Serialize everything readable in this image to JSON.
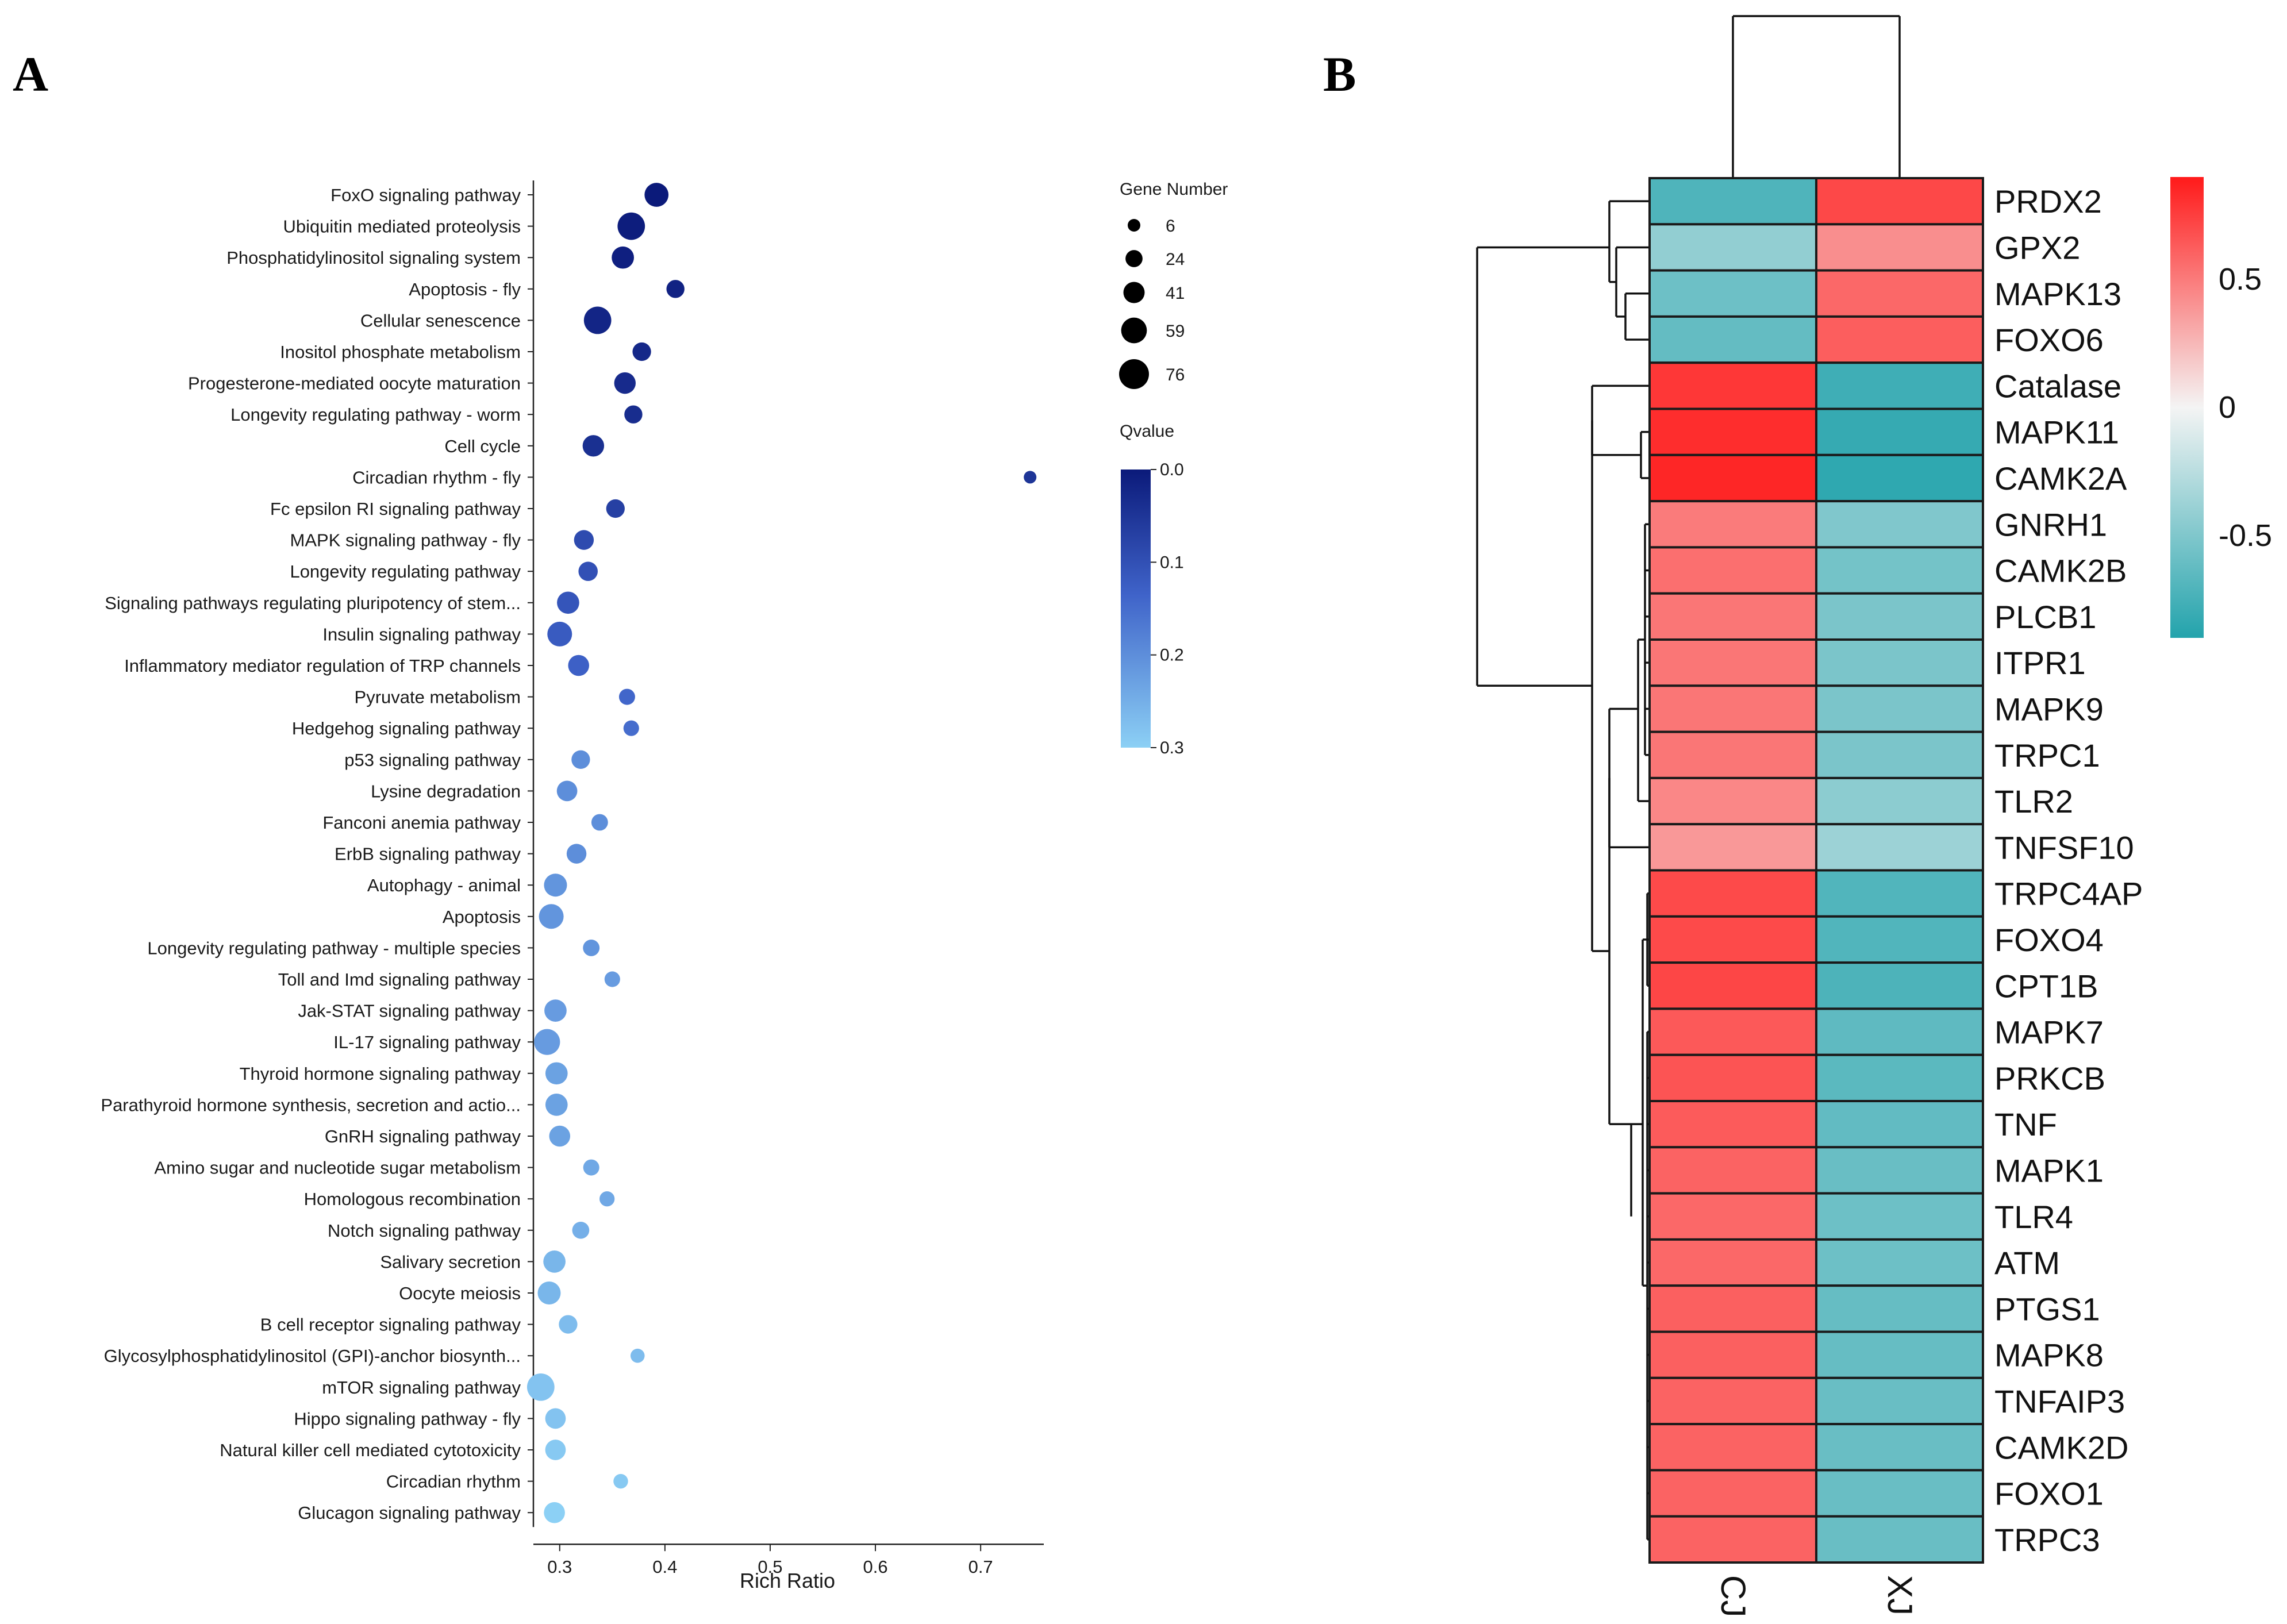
{
  "panels": {
    "a_label": "A",
    "b_label": "B"
  },
  "chart_data": [
    {
      "type": "scatter",
      "panel": "A",
      "title": "",
      "xlabel": "Rich Ratio",
      "ylabel": "",
      "xlim": [
        0.275,
        0.76
      ],
      "xticks": [
        0.3,
        0.4,
        0.5,
        0.6,
        0.7
      ],
      "xtick_labels": [
        "0.3",
        "0.4",
        "0.5",
        "0.6",
        "0.7"
      ],
      "size_legend_title": "Gene Number",
      "size_legend": [
        6,
        24,
        41,
        59,
        76
      ],
      "color_legend_title": "Qvalue",
      "color_legend_ticks": [
        "0.0",
        "0.1",
        "0.2",
        "0.3"
      ],
      "color_range": {
        "low": "#0b1a7a",
        "high": "#8cd0f5",
        "min": 0.0,
        "max": 0.3
      },
      "points": [
        {
          "pathway": "FoxO signaling pathway",
          "rich_ratio": 0.392,
          "genes": 52,
          "qvalue": 0.0
        },
        {
          "pathway": "Ubiquitin mediated proteolysis",
          "rich_ratio": 0.368,
          "genes": 66,
          "qvalue": 0.005
        },
        {
          "pathway": "Phosphatidylinositol signaling system",
          "rich_ratio": 0.36,
          "genes": 45,
          "qvalue": 0.01
        },
        {
          "pathway": "Apoptosis - fly",
          "rich_ratio": 0.41,
          "genes": 28,
          "qvalue": 0.015
        },
        {
          "pathway": "Cellular senescence",
          "rich_ratio": 0.336,
          "genes": 66,
          "qvalue": 0.02
        },
        {
          "pathway": "Inositol phosphate metabolism",
          "rich_ratio": 0.378,
          "genes": 30,
          "qvalue": 0.025
        },
        {
          "pathway": "Progesterone-mediated oocyte maturation",
          "rich_ratio": 0.362,
          "genes": 42,
          "qvalue": 0.03
        },
        {
          "pathway": "Longevity regulating pathway - worm",
          "rich_ratio": 0.37,
          "genes": 28,
          "qvalue": 0.035
        },
        {
          "pathway": "Cell cycle",
          "rich_ratio": 0.332,
          "genes": 42,
          "qvalue": 0.04
        },
        {
          "pathway": "Circadian rhythm - fly",
          "rich_ratio": 0.747,
          "genes": 6,
          "qvalue": 0.05
        },
        {
          "pathway": "Fc epsilon RI signaling pathway",
          "rich_ratio": 0.353,
          "genes": 30,
          "qvalue": 0.07
        },
        {
          "pathway": "MAPK signaling pathway - fly",
          "rich_ratio": 0.323,
          "genes": 35,
          "qvalue": 0.09
        },
        {
          "pathway": "Longevity regulating pathway",
          "rich_ratio": 0.327,
          "genes": 33,
          "qvalue": 0.1
        },
        {
          "pathway": "Signaling pathways regulating pluripotency of stem...",
          "rich_ratio": 0.308,
          "genes": 45,
          "qvalue": 0.11
        },
        {
          "pathway": "Insulin signaling pathway",
          "rich_ratio": 0.3,
          "genes": 55,
          "qvalue": 0.12
        },
        {
          "pathway": "Inflammatory mediator regulation of TRP channels",
          "rich_ratio": 0.318,
          "genes": 40,
          "qvalue": 0.13
        },
        {
          "pathway": "Pyruvate metabolism",
          "rich_ratio": 0.364,
          "genes": 20,
          "qvalue": 0.14
        },
        {
          "pathway": "Hedgehog signaling pathway",
          "rich_ratio": 0.368,
          "genes": 18,
          "qvalue": 0.15
        },
        {
          "pathway": "p53 signaling pathway",
          "rich_ratio": 0.32,
          "genes": 30,
          "qvalue": 0.2
        },
        {
          "pathway": "Lysine degradation",
          "rich_ratio": 0.307,
          "genes": 38,
          "qvalue": 0.2
        },
        {
          "pathway": "Fanconi anemia pathway",
          "rich_ratio": 0.338,
          "genes": 22,
          "qvalue": 0.2
        },
        {
          "pathway": "ErbB signaling pathway",
          "rich_ratio": 0.316,
          "genes": 35,
          "qvalue": 0.2
        },
        {
          "pathway": "Autophagy - animal",
          "rich_ratio": 0.296,
          "genes": 48,
          "qvalue": 0.21
        },
        {
          "pathway": "Apoptosis",
          "rich_ratio": 0.292,
          "genes": 55,
          "qvalue": 0.21
        },
        {
          "pathway": "Longevity regulating pathway - multiple species",
          "rich_ratio": 0.33,
          "genes": 22,
          "qvalue": 0.21
        },
        {
          "pathway": "Toll and Imd signaling pathway",
          "rich_ratio": 0.35,
          "genes": 18,
          "qvalue": 0.22
        },
        {
          "pathway": "Jak-STAT signaling pathway",
          "rich_ratio": 0.296,
          "genes": 45,
          "qvalue": 0.22
        },
        {
          "pathway": "IL-17 signaling pathway",
          "rich_ratio": 0.288,
          "genes": 60,
          "qvalue": 0.22
        },
        {
          "pathway": "Thyroid hormone signaling pathway",
          "rich_ratio": 0.297,
          "genes": 45,
          "qvalue": 0.23
        },
        {
          "pathway": "Parathyroid hormone synthesis, secretion and actio...",
          "rich_ratio": 0.297,
          "genes": 45,
          "qvalue": 0.23
        },
        {
          "pathway": "GnRH signaling pathway",
          "rich_ratio": 0.3,
          "genes": 40,
          "qvalue": 0.23
        },
        {
          "pathway": "Amino sugar and nucleotide sugar metabolism",
          "rich_ratio": 0.33,
          "genes": 20,
          "qvalue": 0.24
        },
        {
          "pathway": "Homologous recombination",
          "rich_ratio": 0.345,
          "genes": 16,
          "qvalue": 0.24
        },
        {
          "pathway": "Notch signaling pathway",
          "rich_ratio": 0.32,
          "genes": 24,
          "qvalue": 0.25
        },
        {
          "pathway": "Salivary secretion",
          "rich_ratio": 0.295,
          "genes": 45,
          "qvalue": 0.26
        },
        {
          "pathway": "Oocyte meiosis",
          "rich_ratio": 0.29,
          "genes": 48,
          "qvalue": 0.26
        },
        {
          "pathway": "B cell receptor signaling pathway",
          "rich_ratio": 0.308,
          "genes": 30,
          "qvalue": 0.27
        },
        {
          "pathway": "Glycosylphosphatidylinositol (GPI)-anchor biosynth...",
          "rich_ratio": 0.374,
          "genes": 12,
          "qvalue": 0.27
        },
        {
          "pathway": "mTOR signaling pathway",
          "rich_ratio": 0.282,
          "genes": 66,
          "qvalue": 0.28
        },
        {
          "pathway": "Hippo signaling pathway - fly",
          "rich_ratio": 0.296,
          "genes": 38,
          "qvalue": 0.28
        },
        {
          "pathway": "Natural killer cell mediated cytotoxicity",
          "rich_ratio": 0.296,
          "genes": 38,
          "qvalue": 0.29
        },
        {
          "pathway": "Circadian rhythm",
          "rich_ratio": 0.358,
          "genes": 14,
          "qvalue": 0.29
        },
        {
          "pathway": "Glucagon signaling pathway",
          "rich_ratio": 0.295,
          "genes": 40,
          "qvalue": 0.3
        }
      ]
    },
    {
      "type": "heatmap",
      "panel": "B",
      "title": "",
      "columns": [
        "CJ",
        "XJ"
      ],
      "colorbar_ticks": [
        "0.5",
        "0",
        "-0.5"
      ],
      "colorbar_range": [
        -0.9,
        0.9
      ],
      "color_low": "#23a3ac",
      "color_mid": "#f4f4f4",
      "color_high": "#ff1a1a",
      "rows": [
        {
          "gene": "PRDX2",
          "values": [
            -0.71,
            0.71
          ]
        },
        {
          "gene": "GPX2",
          "values": [
            -0.42,
            0.42
          ]
        },
        {
          "gene": "MAPK13",
          "values": [
            -0.58,
            0.58
          ]
        },
        {
          "gene": "FOXO6",
          "values": [
            -0.62,
            0.62
          ]
        },
        {
          "gene": "Catalase",
          "values": [
            0.78,
            -0.78
          ]
        },
        {
          "gene": "MAPK11",
          "values": [
            0.82,
            -0.82
          ]
        },
        {
          "gene": "CAMK2A",
          "values": [
            0.85,
            -0.85
          ]
        },
        {
          "gene": "GNRH1",
          "values": [
            0.5,
            -0.5
          ]
        },
        {
          "gene": "CAMK2B",
          "values": [
            0.55,
            -0.55
          ]
        },
        {
          "gene": "PLCB1",
          "values": [
            0.52,
            -0.52
          ]
        },
        {
          "gene": "ITPR1",
          "values": [
            0.52,
            -0.52
          ]
        },
        {
          "gene": "MAPK9",
          "values": [
            0.52,
            -0.52
          ]
        },
        {
          "gene": "TRPC1",
          "values": [
            0.52,
            -0.52
          ]
        },
        {
          "gene": "TLR2",
          "values": [
            0.45,
            -0.45
          ]
        },
        {
          "gene": "TNFSF10",
          "values": [
            0.38,
            -0.38
          ]
        },
        {
          "gene": "TRPC4AP",
          "values": [
            0.7,
            -0.7
          ]
        },
        {
          "gene": "FOXO4",
          "values": [
            0.7,
            -0.7
          ]
        },
        {
          "gene": "CPT1B",
          "values": [
            0.72,
            -0.72
          ]
        },
        {
          "gene": "MAPK7",
          "values": [
            0.64,
            -0.64
          ]
        },
        {
          "gene": "PRKCB",
          "values": [
            0.66,
            -0.66
          ]
        },
        {
          "gene": "TNF",
          "values": [
            0.63,
            -0.63
          ]
        },
        {
          "gene": "MAPK1",
          "values": [
            0.6,
            -0.6
          ]
        },
        {
          "gene": "TLR4",
          "values": [
            0.58,
            -0.58
          ]
        },
        {
          "gene": "ATM",
          "values": [
            0.58,
            -0.58
          ]
        },
        {
          "gene": "PTGS1",
          "values": [
            0.61,
            -0.61
          ]
        },
        {
          "gene": "MAPK8",
          "values": [
            0.61,
            -0.61
          ]
        },
        {
          "gene": "TNFAIP3",
          "values": [
            0.6,
            -0.6
          ]
        },
        {
          "gene": "CAMK2D",
          "values": [
            0.6,
            -0.6
          ]
        },
        {
          "gene": "FOXO1",
          "values": [
            0.6,
            -0.6
          ]
        },
        {
          "gene": "TRPC3",
          "values": [
            0.6,
            -0.6
          ]
        }
      ]
    }
  ]
}
